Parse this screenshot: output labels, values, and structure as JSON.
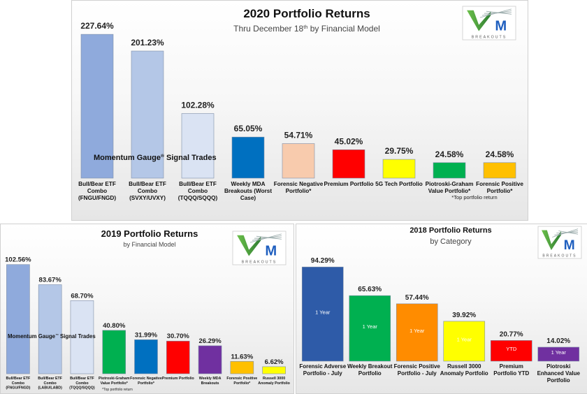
{
  "logo": {
    "mark": "M",
    "text": "BREAKOUTS"
  },
  "chart_data": [
    {
      "type": "bar",
      "title": "2020 Portfolio Returns",
      "subtitle": {
        "before": "Thru December 18",
        "sup": "th",
        "after": " by Financial Model"
      },
      "overlay": {
        "before": "Momentum Gauge",
        "sup": "®",
        "after": " Signal Trades"
      },
      "footnote": "*Top portfolio return",
      "ylim": [
        0,
        230
      ],
      "categories": [
        [
          "Bull/Bear ETF",
          "Combo",
          "(FNGU/FNGD)"
        ],
        [
          "Bull/Bear ETF",
          "Combo",
          "(SVXY/UVXY)"
        ],
        [
          "Bull/Bear ETF",
          "Combo",
          "(TQQQ/SQQQ)"
        ],
        [
          "Weekly MDA",
          "Breakouts (Worst",
          "Case)"
        ],
        [
          "Forensic Negative",
          "Portfolio*"
        ],
        [
          "Premium Portfolio"
        ],
        [
          "5G Tech Portfolio"
        ],
        [
          "Piotroski-Graham",
          "Value Portfolio*"
        ],
        [
          "Forensic Positive",
          "Portfolio*"
        ]
      ],
      "values": [
        227.64,
        201.23,
        102.28,
        65.05,
        54.71,
        45.02,
        29.75,
        24.58,
        24.58
      ],
      "labels": [
        "227.64%",
        "201.23%",
        "102.28%",
        "65.05%",
        "54.71%",
        "45.02%",
        "29.75%",
        "24.58%",
        "24.58%"
      ],
      "colors": [
        "#8faadc",
        "#b4c7e7",
        "#dae3f3",
        "#0070c0",
        "#f8cbad",
        "#ff0000",
        "#ffff00",
        "#00b050",
        "#ffc000"
      ]
    },
    {
      "type": "bar",
      "title": "2019 Portfolio Returns",
      "subtitle": {
        "before": "by Financial Model",
        "sup": "",
        "after": ""
      },
      "overlay": {
        "before": "Momentum Gauge",
        "sup": "™",
        "after": " Signal Trades"
      },
      "footnote": "*Top portfolio return",
      "ylim": [
        0,
        105
      ],
      "categories": [
        [
          "Bull/Bear ETF",
          "Combo",
          "(FNGU/FNGD)"
        ],
        [
          "Bull/Bear ETF",
          "Combo",
          "(LABU/LABD)"
        ],
        [
          "Bull/Bear ETF",
          "Combo",
          "(TQQQ/SQQQ)"
        ],
        [
          "Piotroski-Graham",
          "Value Portfolio*"
        ],
        [
          "Forensic Negative",
          "Portfolio*"
        ],
        [
          "Premium Portfolio"
        ],
        [
          "Weekly MDA",
          "Breakouts"
        ],
        [
          "Forensic Positive",
          "Portfolio*"
        ],
        [
          "Russell 3000",
          "Anomaly Portfolio"
        ]
      ],
      "values": [
        102.56,
        83.67,
        68.7,
        40.8,
        31.99,
        30.7,
        26.29,
        11.63,
        6.62
      ],
      "labels": [
        "102.56%",
        "83.67%",
        "68.70%",
        "40.80%",
        "31.99%",
        "30.70%",
        "26.29%",
        "11.63%",
        "6.62%"
      ],
      "colors": [
        "#8faadc",
        "#b4c7e7",
        "#dae3f3",
        "#00b050",
        "#0070c0",
        "#ff0000",
        "#7030a0",
        "#ffc000",
        "#ffff00"
      ]
    },
    {
      "type": "bar",
      "title": "2018 Portfolio Returns",
      "subtitle": {
        "before": "by Category",
        "sup": "",
        "after": ""
      },
      "ylim": [
        0,
        100
      ],
      "categories": [
        [
          "Forensic Adverse",
          "Portfolio - July"
        ],
        [
          "Weekly Breakout",
          "Portfolio"
        ],
        [
          "Forensic Positive",
          "Portfolio - July"
        ],
        [
          "Russell 3000",
          "Anomaly Portfolio"
        ],
        [
          "Premium",
          "Portfolio YTD"
        ],
        [
          "Piotroski",
          "Enhanced Value",
          "Portfolio"
        ]
      ],
      "values": [
        94.29,
        65.63,
        57.44,
        39.92,
        20.77,
        14.02
      ],
      "labels": [
        "94.29%",
        "65.63%",
        "57.44%",
        "39.92%",
        "20.77%",
        "14.02%"
      ],
      "bar_text": [
        "1 Year",
        "1 Year",
        "1 Year",
        "1 Year",
        "YTD",
        "1 Year"
      ],
      "colors": [
        "#2e5ba8",
        "#00b050",
        "#ff8c00",
        "#ffff00",
        "#ff0000",
        "#7030a0"
      ]
    }
  ]
}
